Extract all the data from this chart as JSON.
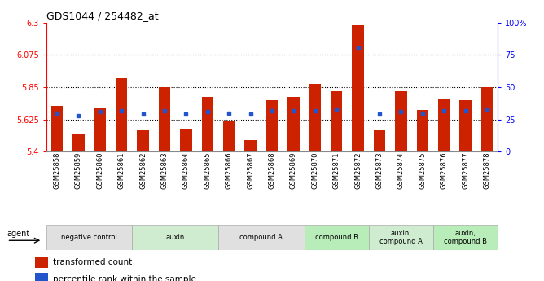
{
  "title": "GDS1044 / 254482_at",
  "samples": [
    "GSM25858",
    "GSM25859",
    "GSM25860",
    "GSM25861",
    "GSM25862",
    "GSM25863",
    "GSM25864",
    "GSM25865",
    "GSM25866",
    "GSM25867",
    "GSM25868",
    "GSM25869",
    "GSM25870",
    "GSM25871",
    "GSM25872",
    "GSM25873",
    "GSM25874",
    "GSM25875",
    "GSM25876",
    "GSM25877",
    "GSM25878"
  ],
  "transformed_count": [
    5.72,
    5.52,
    5.7,
    5.91,
    5.55,
    5.85,
    5.56,
    5.78,
    5.62,
    5.48,
    5.76,
    5.78,
    5.87,
    5.82,
    6.28,
    5.55,
    5.82,
    5.69,
    5.77,
    5.76,
    5.85
  ],
  "percentile_rank": [
    30,
    28,
    31,
    32,
    29,
    32,
    29,
    31,
    30,
    29,
    32,
    32,
    32,
    33,
    80,
    29,
    31,
    30,
    32,
    32,
    33
  ],
  "groups": [
    {
      "label": "negative control",
      "start": 0,
      "end": 3,
      "color": "#e0e0e0"
    },
    {
      "label": "auxin",
      "start": 4,
      "end": 7,
      "color": "#d0ecd0"
    },
    {
      "label": "compound A",
      "start": 8,
      "end": 11,
      "color": "#e0e0e0"
    },
    {
      "label": "compound B",
      "start": 12,
      "end": 14,
      "color": "#b8ecb8"
    },
    {
      "label": "auxin,\ncompound A",
      "start": 15,
      "end": 17,
      "color": "#d0ecd0"
    },
    {
      "label": "auxin,\ncompound B",
      "start": 18,
      "end": 20,
      "color": "#b8ecb8"
    }
  ],
  "y_min": 5.4,
  "y_max": 6.3,
  "y_ticks_red": [
    5.4,
    5.625,
    5.85,
    6.075,
    6.3
  ],
  "y_ticks_red_labels": [
    "5.4",
    "5.625",
    "5.85",
    "6.075",
    "6.3"
  ],
  "y_ticks_blue": [
    0,
    25,
    50,
    75,
    100
  ],
  "y_ticks_blue_labels": [
    "0",
    "25",
    "50",
    "75",
    "100%"
  ],
  "hlines": [
    5.625,
    5.85,
    6.075
  ],
  "bar_color": "#cc2200",
  "blue_color": "#2255cc",
  "bar_width": 0.55,
  "legend_red": "transformed count",
  "legend_blue": "percentile rank within the sample",
  "agent_label": "agent"
}
